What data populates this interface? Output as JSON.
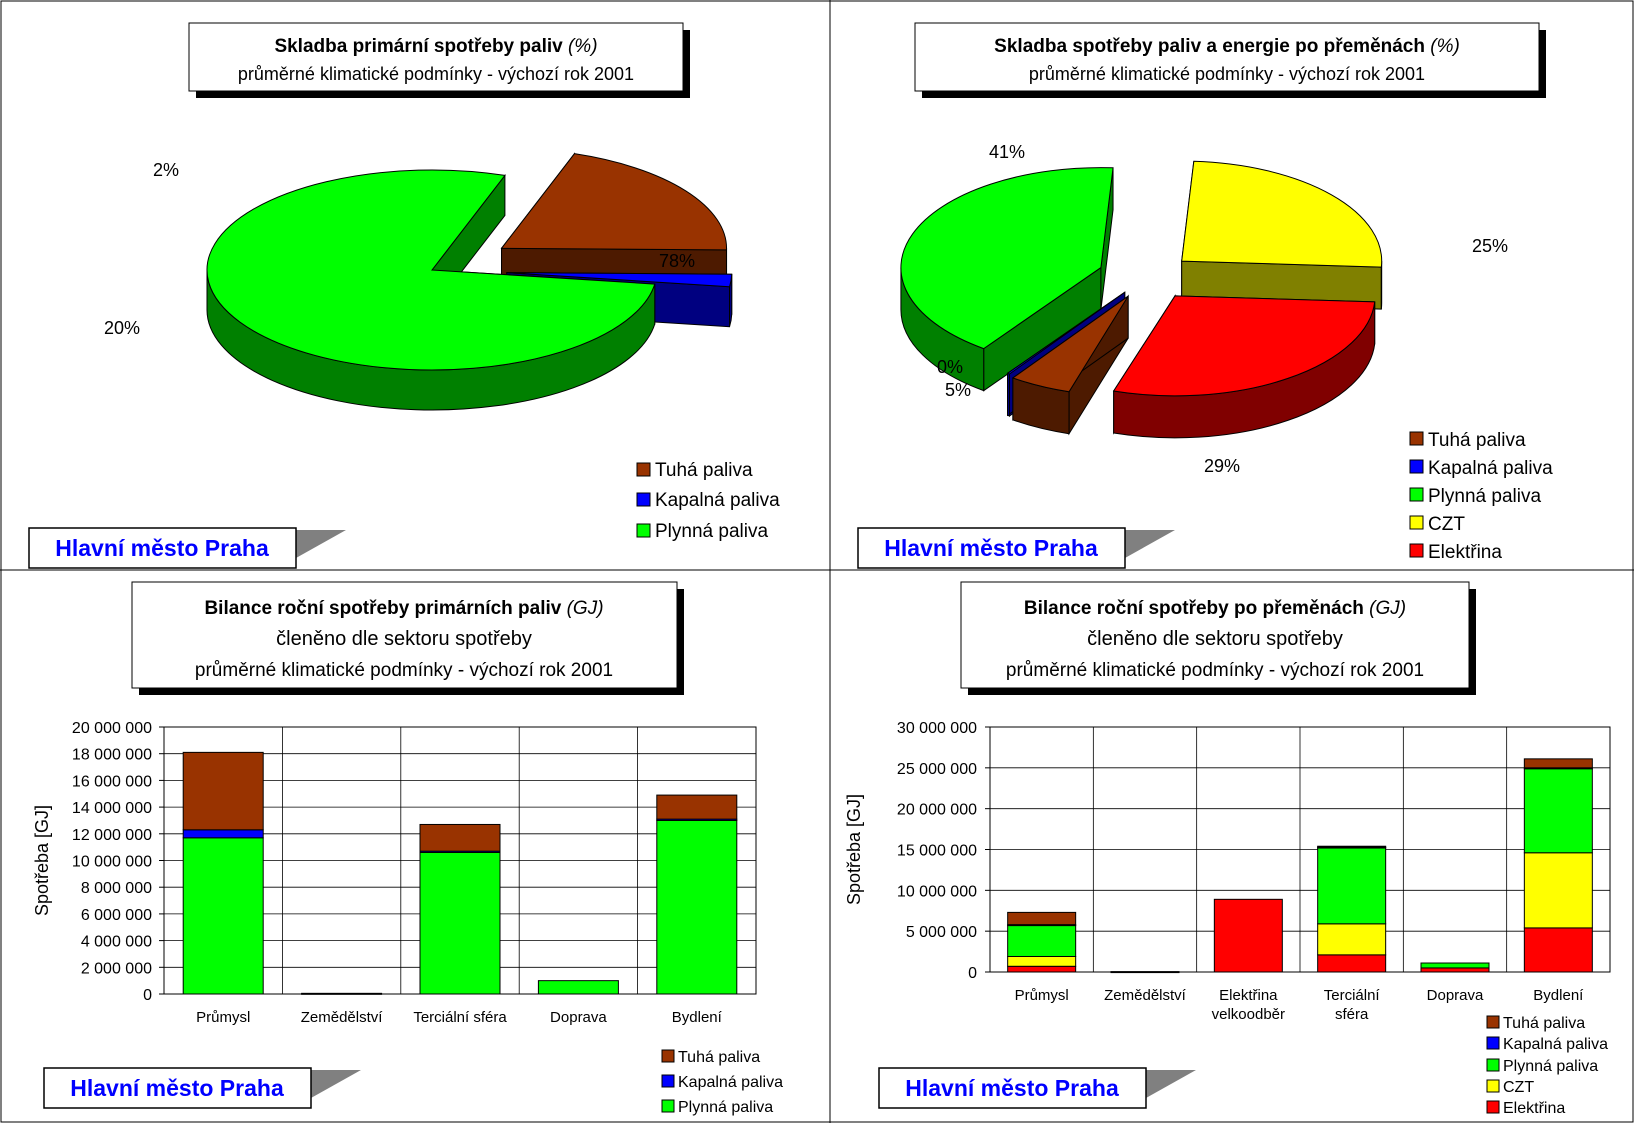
{
  "region_label": "Hlavní město Praha",
  "colors": {
    "tuha": "#993300",
    "kapalna": "#0000FF",
    "plynna": "#00FF00",
    "czt": "#FFFF00",
    "elektrina": "#FF0000"
  },
  "legend": {
    "tuha": "Tuhá paliva",
    "kapalna": "Kapalná paliva",
    "plynna": "Plynná paliva",
    "czt": "CZT",
    "elektrina": "Elektřina"
  },
  "chart_data": [
    {
      "type": "pie",
      "title": "Skladba primární spotřeby paliv",
      "title_unit": "(%)",
      "subtitle": "průměrné klimatické podmínky - výchozí rok 2001",
      "slices": [
        {
          "name": "Tuhá paliva",
          "value": 20,
          "label": "20%"
        },
        {
          "name": "Kapalná paliva",
          "value": 2,
          "label": "2%"
        },
        {
          "name": "Plynná paliva",
          "value": 78,
          "label": "78%"
        }
      ]
    },
    {
      "type": "pie",
      "title": "Skladba spotřeby paliv a energie po přeměnách",
      "title_unit": "(%)",
      "subtitle": "průměrné klimatické podmínky - výchozí rok 2001",
      "slices": [
        {
          "name": "Tuhá paliva",
          "value": 5,
          "label": "5%"
        },
        {
          "name": "Kapalná paliva",
          "value": 0,
          "label": "0%"
        },
        {
          "name": "Plynná paliva",
          "value": 41,
          "label": "41%"
        },
        {
          "name": "CZT",
          "value": 25,
          "label": "25%"
        },
        {
          "name": "Elektřina",
          "value": 29,
          "label": "29%"
        }
      ]
    },
    {
      "type": "bar",
      "stacked": true,
      "title": "Bilance roční spotřeby primárních paliv",
      "title_unit": "(GJ)",
      "subtitle_lines": [
        "členěno dle sektoru spotřeby",
        "průměrné klimatické podmínky - výchozí rok 2001"
      ],
      "ylabel": "Spotřeba [GJ]",
      "ylim": [
        0,
        20000000
      ],
      "yticks": [
        "0",
        "2 000 000",
        "4 000 000",
        "6 000 000",
        "8 000 000",
        "10 000 000",
        "12 000 000",
        "14 000 000",
        "16 000 000",
        "18 000 000",
        "20 000 000"
      ],
      "categories": [
        "Průmysl",
        "Zemědělství",
        "Terciální sféra",
        "Doprava",
        "Bydlení"
      ],
      "series": [
        {
          "name": "Plynná paliva",
          "values": [
            11700000,
            0,
            10600000,
            1000000,
            13000000
          ]
        },
        {
          "name": "Kapalná paliva",
          "values": [
            600000,
            0,
            100000,
            0,
            100000
          ]
        },
        {
          "name": "Tuhá paliva",
          "values": [
            5800000,
            50000,
            2000000,
            0,
            1800000
          ]
        }
      ]
    },
    {
      "type": "bar",
      "stacked": true,
      "title": "Bilance roční spotřeby po přeměnách",
      "title_unit": "(GJ)",
      "subtitle_lines": [
        "členěno dle sektoru spotřeby",
        "průměrné klimatické podmínky - výchozí rok 2001"
      ],
      "ylabel": "Spotřeba [GJ]",
      "ylim": [
        0,
        30000000
      ],
      "yticks": [
        "0",
        "5 000 000",
        "10 000 000",
        "15 000 000",
        "20 000 000",
        "25 000 000",
        "30 000 000"
      ],
      "categories": [
        [
          "Průmysl"
        ],
        [
          "Zemědělství"
        ],
        [
          "Elektřina",
          "velkoodběr"
        ],
        [
          "Terciální",
          "sféra"
        ],
        [
          "Doprava"
        ],
        [
          "Bydlení"
        ]
      ],
      "series": [
        {
          "name": "Elektřina",
          "values": [
            700000,
            0,
            8900000,
            2100000,
            500000,
            5400000
          ]
        },
        {
          "name": "CZT",
          "values": [
            1200000,
            0,
            0,
            3800000,
            0,
            9200000
          ]
        },
        {
          "name": "Plynná paliva",
          "values": [
            3800000,
            0,
            0,
            9300000,
            600000,
            10300000
          ]
        },
        {
          "name": "Kapalná paliva",
          "values": [
            100000,
            0,
            0,
            100000,
            0,
            100000
          ]
        },
        {
          "name": "Tuhá paliva",
          "values": [
            1500000,
            50000,
            0,
            100000,
            0,
            1100000
          ]
        }
      ]
    }
  ]
}
